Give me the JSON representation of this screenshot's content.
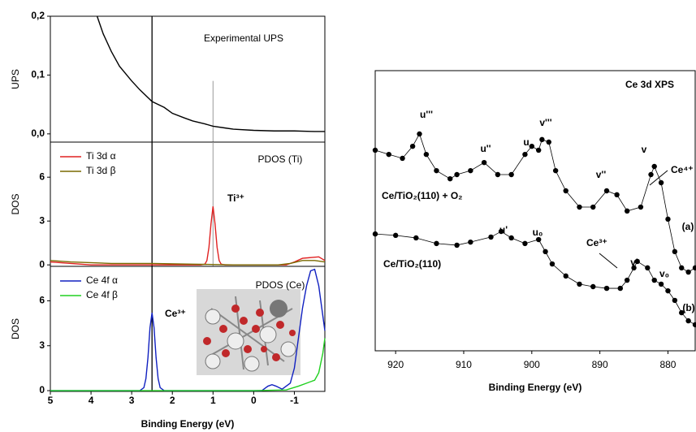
{
  "chart_data": [
    {
      "type": "line",
      "ylabel": "UPS",
      "annotations": [
        "Experimental UPS"
      ],
      "xlim": [
        5,
        -1.75
      ],
      "ylim": [
        -0.014,
        0.2
      ],
      "yticks": [
        {
          "value": 0,
          "label": "0,0"
        },
        {
          "value": 0.1,
          "label": "0,1"
        },
        {
          "value": 0.2,
          "label": "0,2"
        }
      ],
      "vlines": [
        {
          "x": 2.5,
          "color": "#000000"
        },
        {
          "x": 1.0,
          "color": "#999999"
        }
      ],
      "series": [
        {
          "color": "#000000",
          "x": [
            3.85,
            3.7,
            3.5,
            3.3,
            3.0,
            2.8,
            2.5,
            2.2,
            2.0,
            1.7,
            1.5,
            1.2,
            1.0,
            0.7,
            0.5,
            0,
            -0.5,
            -1,
            -1.5,
            -1.75
          ],
          "values": [
            0.2,
            0.17,
            0.14,
            0.115,
            0.09,
            0.075,
            0.055,
            0.045,
            0.035,
            0.027,
            0.022,
            0.017,
            0.013,
            0.01,
            0.008,
            0.006,
            0.005,
            0.005,
            0.004,
            0.004
          ]
        }
      ]
    },
    {
      "type": "line",
      "ylabel": "DOS",
      "annotations": [
        "PDOS (Ti)",
        "Ti³⁺"
      ],
      "legend": "upper left",
      "xlim": [
        5,
        -1.75
      ],
      "ylim": [
        -0.1,
        8.4
      ],
      "yticks": [
        0,
        3,
        6
      ],
      "vlines": [
        {
          "x": 2.5,
          "color": "#000000"
        },
        {
          "x": 1.0,
          "color": "#999999"
        }
      ],
      "series": [
        {
          "name": "Ti 3d α",
          "color": "#e02020",
          "x": [
            5,
            4.5,
            4.0,
            3.0,
            2.0,
            1.3,
            1.2,
            1.15,
            1.1,
            1.05,
            1.0,
            0.95,
            0.9,
            0.85,
            0.8,
            0.7,
            0.0,
            -0.8,
            -1.0,
            -1.2,
            -1.4,
            -1.6,
            -1.75
          ],
          "values": [
            0.2,
            0.1,
            0,
            0,
            0,
            0,
            0.05,
            0.3,
            1.2,
            2.8,
            4.0,
            2.8,
            1.2,
            0.3,
            0.05,
            0,
            0,
            0,
            0.2,
            0.45,
            0.5,
            0.55,
            0.3
          ]
        },
        {
          "name": "Ti 3d β",
          "color": "#7a6a00",
          "x": [
            5,
            4.5,
            3.5,
            2.5,
            1.5,
            0.5,
            -0.6,
            -0.9,
            -1.2,
            -1.5,
            -1.75
          ],
          "values": [
            0.3,
            0.2,
            0.1,
            0.1,
            0.05,
            0,
            0,
            0.1,
            0.3,
            0.3,
            0.2
          ]
        }
      ]
    },
    {
      "type": "line",
      "ylabel": "DOS",
      "xlabel": "Binding Energy (eV)",
      "annotations": [
        "PDOS (Ce)",
        "Ce³⁺"
      ],
      "legend": "upper left",
      "xlim": [
        5,
        -1.75
      ],
      "ylim": [
        -0.05,
        8.3
      ],
      "yticks": [
        0,
        3,
        6
      ],
      "xticks": [
        5,
        4,
        3,
        2,
        1,
        0,
        -1
      ],
      "vlines": [
        {
          "x": 2.5,
          "color": "#000000"
        }
      ],
      "series": [
        {
          "name": "Ce 4f α",
          "color": "#1020c0",
          "x": [
            5,
            3,
            2.8,
            2.7,
            2.65,
            2.6,
            2.55,
            2.5,
            2.45,
            2.4,
            2.35,
            2.3,
            2.2,
            1.0,
            -0.2,
            -0.35,
            -0.45,
            -0.55,
            -0.7,
            -0.9,
            -1.0,
            -1.1,
            -1.2,
            -1.3,
            -1.4,
            -1.5,
            -1.6,
            -1.7,
            -1.75
          ],
          "values": [
            0,
            0,
            0,
            0.2,
            0.8,
            2.2,
            4.2,
            5.2,
            4.2,
            2.2,
            0.8,
            0.2,
            0,
            0,
            0,
            0.3,
            0.4,
            0.3,
            0.1,
            0.5,
            1.5,
            3.5,
            5.5,
            7.0,
            8.0,
            8.1,
            7.0,
            5.0,
            4.0
          ]
        },
        {
          "name": "Ce 4f β",
          "color": "#20d020",
          "x": [
            5,
            2.5,
            0,
            -0.8,
            -1.1,
            -1.3,
            -1.5,
            -1.6,
            -1.7,
            -1.75
          ],
          "values": [
            0,
            0,
            0,
            0.05,
            0.3,
            0.5,
            0.7,
            1.2,
            2.5,
            3.5
          ]
        }
      ]
    },
    {
      "type": "scatter",
      "xlabel": "Binding Energy (eV)",
      "annotations": [
        "Ce 3d XPS",
        "u'''",
        "u''",
        "u",
        "v'''",
        "v''",
        "v",
        "Ce⁴⁺",
        "Ce/TiO₂(110) + O₂",
        "(a)",
        "u'",
        "u₀",
        "Ce³⁺",
        "v'",
        "v₀",
        "Ce/TiO₂(110)",
        "(b)"
      ],
      "xlim": [
        923,
        876
      ],
      "ylim": [
        0,
        100
      ],
      "xticks": [
        920,
        910,
        900,
        890,
        880
      ],
      "series": [
        {
          "color": "#000000",
          "x": [
            923,
            921,
            919,
            917.5,
            916.5,
            915.5,
            914,
            912,
            911,
            909,
            907,
            905,
            903,
            901,
            900,
            899,
            898.5,
            897.5,
            896.5,
            895,
            893,
            891,
            889,
            887.5,
            886,
            884,
            882.5,
            882,
            881,
            880,
            879,
            878,
            877,
            876
          ],
          "values": [
            71.6,
            70.1,
            68.7,
            73.0,
            77.4,
            70.1,
            64.3,
            61.4,
            62.9,
            64.3,
            67.2,
            62.9,
            62.9,
            70.1,
            73.0,
            71.6,
            75.4,
            74.5,
            64.3,
            57.1,
            51.3,
            51.3,
            57.1,
            55.7,
            49.9,
            51.3,
            62.9,
            65.8,
            60.0,
            47.0,
            35.4,
            29.6,
            28.1,
            29.6
          ]
        },
        {
          "color": "#000000",
          "x": [
            923,
            920,
            917,
            914,
            911,
            909,
            906,
            904.5,
            903,
            901,
            899,
            898,
            897,
            895,
            893,
            891,
            889,
            887,
            886,
            885,
            884.5,
            883,
            882,
            881,
            880,
            879,
            878,
            877,
            876
          ],
          "values": [
            41.7,
            41.2,
            40.3,
            38.3,
            37.7,
            38.8,
            40.6,
            42.6,
            40.3,
            38.3,
            39.7,
            35.4,
            31.0,
            26.7,
            23.8,
            22.9,
            22.3,
            22.3,
            25.2,
            29.6,
            31.9,
            29.6,
            25.2,
            23.8,
            21.4,
            18.0,
            13.6,
            10.7,
            9.3
          ]
        }
      ]
    }
  ]
}
